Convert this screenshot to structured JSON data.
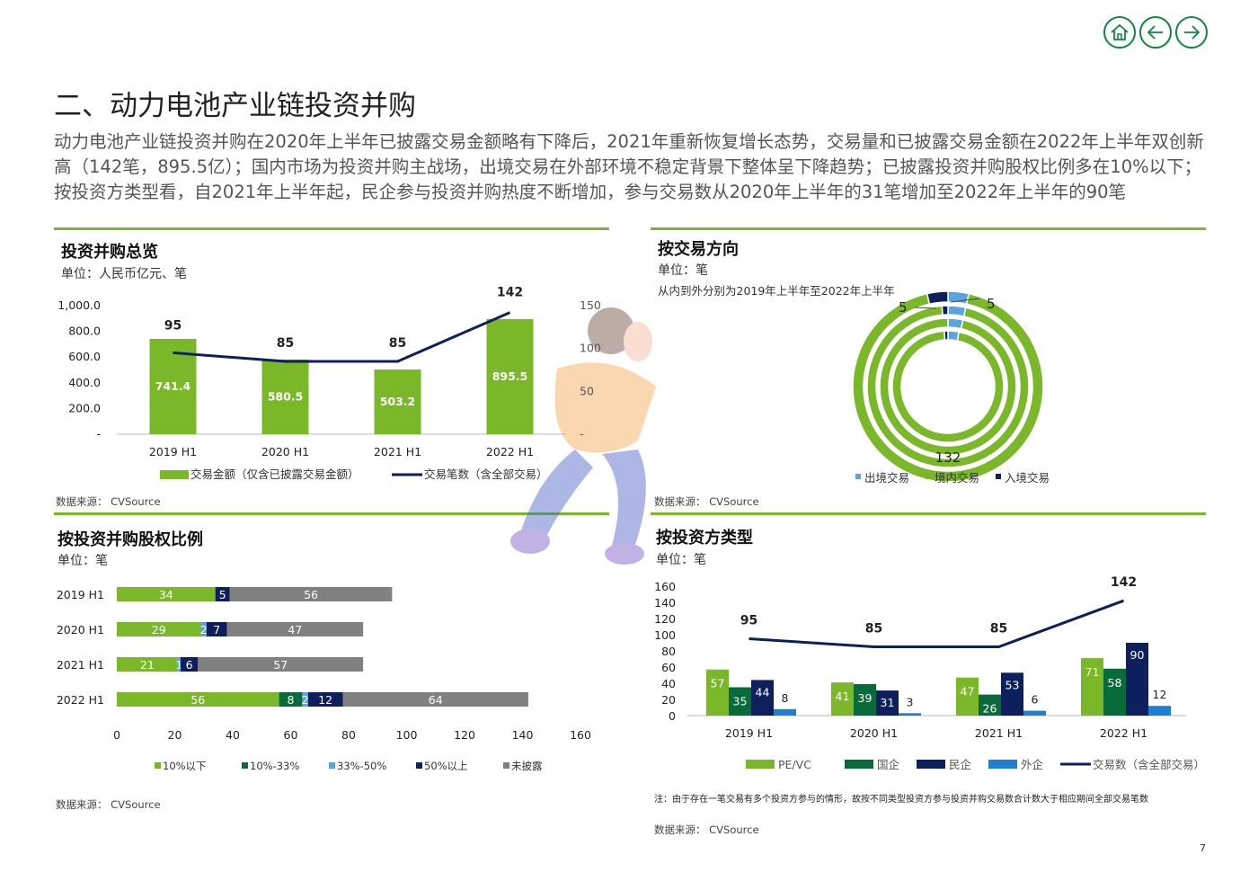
{
  "page": {
    "title": "二、动力电池产业链投资并购",
    "intro": "动力电池产业链投资并购在2020年上半年已披露交易金额略有下降后，2021年重新恢复增长态势，交易量和已披露交易金额在2022年上半年双创新高（142笔，895.5亿）；国内市场为投资并购主战场，出境交易在外部环境不稳定背景下整体呈下降趋势；已披露投资并购股权比例多在10%以下；按投资方类型看，自2021年上半年起，民企参与投资并购热度不断增加，参与交易数从2020年上半年的31笔增加至2022年上半年的90笔",
    "page_number": "7",
    "nav": {
      "home_icon": "home-icon",
      "back_icon": "arrow-left-icon",
      "forward_icon": "arrow-right-icon",
      "color": "#0a8a3c"
    }
  },
  "panels": {
    "overview": {
      "title": "投资并购总览",
      "unit": "单位：人民币亿元、笔",
      "source": "数据来源： CVSource"
    },
    "direction": {
      "title": "按交易方向",
      "unit": "单位：笔",
      "subtitle": "从内到外分别为2019年上半年至2022年上半年",
      "source": "数据来源： CVSource"
    },
    "equity": {
      "title": "按投资并购股权比例",
      "unit": "单位：笔",
      "source": "数据来源： CVSource"
    },
    "investor": {
      "title": "按投资方类型",
      "unit": "单位：笔",
      "note": "注：由于存在一笔交易有多个投资方参与的情形，故按不同类型投资方参与投资并购交易数合计数大于相应期间全部交易笔数",
      "source": "数据来源： CVSource"
    }
  },
  "chart_data": [
    {
      "type": "bar",
      "id": "overview",
      "categories": [
        "2019 H1",
        "2020 H1",
        "2021 H1",
        "2022 H1"
      ],
      "series": [
        {
          "name": "交易金额（仅含已披露交易金额）",
          "kind": "bar",
          "axis": "left",
          "values": [
            741.4,
            580.5,
            503.2,
            895.5
          ],
          "labels": [
            "741.4",
            "580.5",
            "503.2",
            "895.5"
          ],
          "color": "#7ab829"
        },
        {
          "name": "交易笔数（含全部交易）",
          "kind": "line",
          "axis": "right",
          "values": [
            95,
            85,
            85,
            142
          ],
          "labels": [
            "95",
            "85",
            "85",
            "142"
          ],
          "color": "#0d1f5c"
        }
      ],
      "y_left": {
        "ticks": [
          0,
          200,
          400,
          600,
          800,
          1000
        ],
        "tick_labels": [
          "-",
          "200.0",
          "400.0",
          "600.0",
          "800.0",
          "1,000.0"
        ],
        "range": [
          0,
          1000
        ]
      },
      "y_right": {
        "ticks": [
          0,
          50,
          100,
          150
        ],
        "tick_labels": [
          "-",
          "50",
          "100",
          "150"
        ],
        "range": [
          0,
          150
        ]
      },
      "legend": "bottom"
    },
    {
      "type": "pie",
      "subtype": "multi-ring-donut",
      "id": "direction",
      "rings_inner_to_outer": [
        "2019 H1",
        "2020 H1",
        "2021 H1",
        "2022 H1"
      ],
      "series": [
        {
          "name": "出境交易",
          "color": "#5ba3dd",
          "values": [
            3,
            3,
            3,
            5
          ]
        },
        {
          "name": "境内交易",
          "color": "#7ab829",
          "values": [
            91,
            82,
            81,
            132
          ]
        },
        {
          "name": "入境交易",
          "color": "#0d1f5c",
          "values": [
            1,
            0,
            1,
            5
          ]
        }
      ],
      "labels_shown": [
        {
          "ring": "2022 H1",
          "series": "入境交易",
          "text": "5"
        },
        {
          "ring": "2022 H1",
          "series": "出境交易",
          "text": "5"
        },
        {
          "ring": "2022 H1",
          "series": "境内交易",
          "text": "132"
        }
      ],
      "legend": "bottom"
    },
    {
      "type": "bar",
      "subtype": "stacked-horizontal",
      "id": "equity",
      "categories": [
        "2019 H1",
        "2020 H1",
        "2021 H1",
        "2022 H1"
      ],
      "series": [
        {
          "name": "10%以下",
          "color": "#7ab829",
          "values": [
            34,
            29,
            21,
            56
          ],
          "labels": [
            "34",
            "29",
            "21",
            "56"
          ]
        },
        {
          "name": "10%-33%",
          "color": "#0a6b3a",
          "values": [
            0,
            0,
            0,
            8
          ],
          "labels": [
            "",
            "",
            "",
            "8"
          ]
        },
        {
          "name": "33%-50%",
          "color": "#5ba3dd",
          "values": [
            0,
            2,
            1,
            2
          ],
          "labels": [
            "",
            "2",
            "1",
            "2"
          ]
        },
        {
          "name": "50%以上",
          "color": "#0d1f5c",
          "values": [
            5,
            7,
            6,
            12
          ],
          "labels": [
            "5",
            "7",
            "6",
            "12"
          ]
        },
        {
          "name": "未披露",
          "color": "#808080",
          "values": [
            56,
            47,
            57,
            64
          ],
          "labels": [
            "56",
            "47",
            "57",
            "64"
          ]
        }
      ],
      "x_ticks": [
        0,
        20,
        40,
        60,
        80,
        100,
        120,
        140,
        160
      ],
      "xlim": [
        0,
        160
      ],
      "legend": "bottom"
    },
    {
      "type": "bar",
      "subtype": "grouped-with-line",
      "id": "investor",
      "categories": [
        "2019 H1",
        "2020 H1",
        "2021 H1",
        "2022 H1"
      ],
      "series": [
        {
          "name": "PE/VC",
          "kind": "bar",
          "color": "#7ab829",
          "values": [
            57,
            41,
            47,
            71
          ],
          "labels": [
            "57",
            "41",
            "47",
            "71"
          ]
        },
        {
          "name": "国企",
          "kind": "bar",
          "color": "#0a6b3a",
          "values": [
            35,
            39,
            26,
            58
          ],
          "labels": [
            "35",
            "39",
            "26",
            "58"
          ]
        },
        {
          "name": "民企",
          "kind": "bar",
          "color": "#0d1f5c",
          "values": [
            44,
            31,
            53,
            90
          ],
          "labels": [
            "44",
            "31",
            "53",
            "90"
          ]
        },
        {
          "name": "外企",
          "kind": "bar",
          "color": "#1f7fd0",
          "values": [
            8,
            3,
            6,
            12
          ],
          "labels": [
            "8",
            "3",
            "6",
            "12"
          ]
        },
        {
          "name": "交易数（含全部交易）",
          "kind": "line",
          "color": "#0d1f5c",
          "values": [
            95,
            85,
            85,
            142
          ],
          "labels": [
            "95",
            "85",
            "85",
            "142"
          ]
        }
      ],
      "y_ticks": [
        0,
        20,
        40,
        60,
        80,
        100,
        120,
        140,
        160
      ],
      "ylim": [
        0,
        160
      ],
      "legend": "bottom"
    }
  ]
}
